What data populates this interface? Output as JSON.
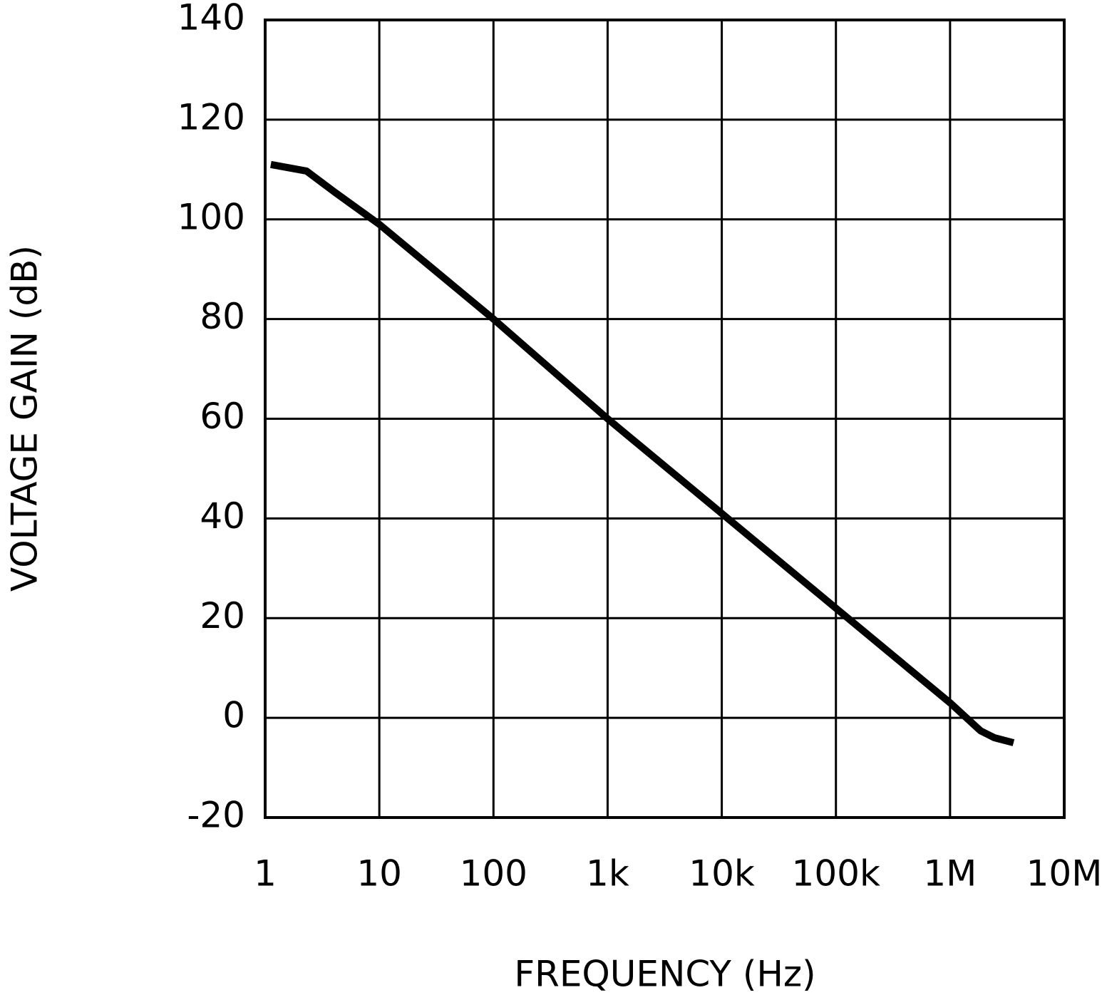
{
  "chart_data": {
    "type": "line",
    "x_label": "FREQUENCY (Hz)",
    "y_label": "VOLTAGE GAIN (dB)",
    "x_scale": "log",
    "x": [
      1.12,
      2.3,
      4.1,
      10,
      100,
      1000,
      10000,
      100000,
      1000000,
      1850000,
      2450000,
      3600000
    ],
    "values": [
      111,
      109.7,
      105.4,
      99,
      80,
      60,
      41,
      22,
      3,
      -2.6,
      -4,
      -5
    ],
    "color": "#000000",
    "xlim": [
      1,
      10000000
    ],
    "xticks": [
      1,
      10,
      100,
      {
        "value": 1000,
        "label": "1k"
      },
      {
        "value": 10000,
        "label": "10k"
      },
      {
        "value": 100000,
        "label": "100k"
      },
      {
        "value": 1000000,
        "label": "1M"
      },
      {
        "value": 10000000,
        "label": "10M"
      }
    ],
    "ylim": [
      -20,
      140
    ],
    "yticks": [
      -20,
      0,
      20,
      40,
      60,
      80,
      100,
      120,
      140
    ],
    "grid": true
  }
}
